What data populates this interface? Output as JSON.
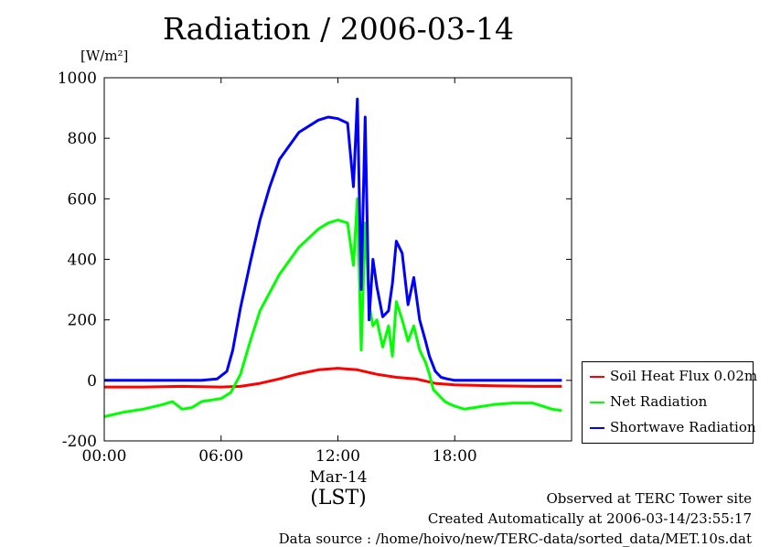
{
  "title": "Radiation / 2006-03-14",
  "unit_label": "[W/m²]",
  "x_date_label": "Mar-14",
  "x_unit_label": "(LST)",
  "footer": {
    "line1": "Observed at TERC Tower site",
    "line2": "Created Automatically at 2006-03-14/23:55:17",
    "line3": "Data source : /home/hoivo/new/TERC-data/sorted_data/MET.10s.dat"
  },
  "chart_data": {
    "type": "line",
    "title": "Radiation / 2006-03-14",
    "ylabel": "[W/m²]",
    "xlabel": "(LST)",
    "xlim": [
      0,
      24
    ],
    "ylim": [
      -200,
      1000
    ],
    "x_ticks": [
      "00:00",
      "06:00",
      "12:00",
      "18:00"
    ],
    "x_tick_hours": [
      0,
      6,
      12,
      18
    ],
    "y_ticks": [
      1000,
      800,
      600,
      400,
      200,
      0,
      -200
    ],
    "legend_position": "bottom-right outside plot",
    "series": [
      {
        "name": "Soil Heat Flux 0.02m",
        "color": "#ff0000",
        "x": [
          0,
          2,
          4,
          6,
          7,
          8,
          9,
          10,
          11,
          12,
          13,
          14,
          15,
          16,
          17,
          18,
          20,
          22,
          23.5
        ],
        "y": [
          -22,
          -22,
          -20,
          -22,
          -20,
          -10,
          5,
          22,
          35,
          40,
          35,
          20,
          10,
          5,
          -10,
          -15,
          -18,
          -20,
          -20
        ]
      },
      {
        "name": "Net Radiation",
        "color": "#00ff00",
        "x": [
          0,
          1,
          2,
          3,
          3.5,
          4,
          4.5,
          5,
          6,
          6.5,
          7,
          7.5,
          8,
          9,
          10,
          11,
          11.5,
          12,
          12.5,
          12.8,
          13.0,
          13.2,
          13.4,
          13.6,
          13.8,
          14.0,
          14.3,
          14.6,
          14.8,
          15.0,
          15.3,
          15.6,
          15.9,
          16.2,
          16.5,
          16.7,
          16.9,
          17.2,
          17.5,
          17.8,
          18.0,
          18.5,
          19,
          20,
          21,
          22,
          23,
          23.5
        ],
        "y": [
          -120,
          -105,
          -95,
          -80,
          -70,
          -95,
          -90,
          -70,
          -60,
          -40,
          20,
          130,
          230,
          350,
          440,
          500,
          520,
          530,
          520,
          380,
          600,
          100,
          520,
          250,
          180,
          200,
          110,
          180,
          80,
          260,
          200,
          130,
          180,
          100,
          60,
          20,
          -30,
          -50,
          -70,
          -80,
          -85,
          -95,
          -90,
          -80,
          -75,
          -75,
          -95,
          -100
        ]
      },
      {
        "name": "Shortwave Radiation",
        "color": "#0000ff",
        "x": [
          0,
          5,
          5.8,
          6.3,
          6.6,
          7,
          7.5,
          8,
          8.5,
          9,
          10,
          11,
          11.5,
          12,
          12.5,
          12.8,
          13.0,
          13.2,
          13.4,
          13.6,
          13.8,
          14.0,
          14.3,
          14.6,
          14.8,
          15.0,
          15.3,
          15.6,
          15.9,
          16.2,
          16.5,
          16.7,
          17.0,
          17.3,
          17.6,
          18.0,
          19,
          20,
          22,
          23.5
        ],
        "y": [
          0,
          0,
          5,
          30,
          100,
          240,
          390,
          530,
          640,
          730,
          820,
          860,
          870,
          865,
          850,
          640,
          930,
          300,
          870,
          200,
          400,
          310,
          210,
          230,
          320,
          460,
          420,
          250,
          340,
          200,
          130,
          80,
          30,
          10,
          5,
          0,
          0,
          0,
          0,
          0
        ]
      }
    ]
  }
}
